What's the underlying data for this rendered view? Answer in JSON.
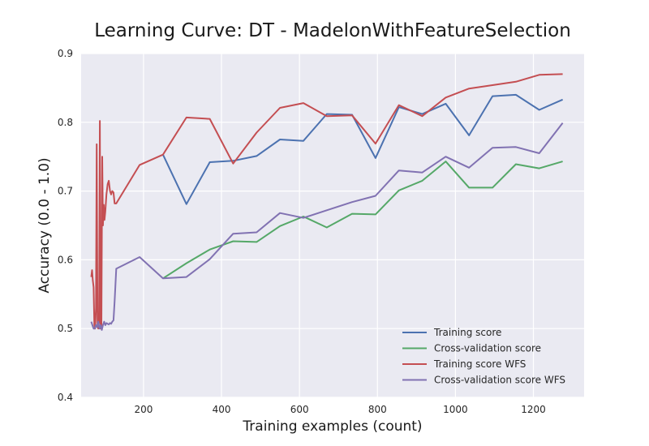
{
  "chart_data": {
    "type": "line",
    "title": "Learning Curve: DT - MadelonWithFeatureSelection",
    "xlabel": "Training examples (count)",
    "ylabel": "Accuracy (0.0 - 1.0)",
    "xlim": [
      40,
      1330
    ],
    "ylim": [
      0.4,
      0.9
    ],
    "xticks": [
      200,
      400,
      600,
      800,
      1000,
      1200
    ],
    "yticks": [
      0.4,
      0.5,
      0.6,
      0.7,
      0.8,
      0.9
    ],
    "ytick_labels": [
      "0.4",
      "0.5",
      "0.6",
      "0.7",
      "0.8",
      "0.9"
    ],
    "grid": true,
    "legend_position": "lower-right",
    "series": [
      {
        "name": "Training score",
        "color": "#4c72b0",
        "points": [
          [
            250,
            0.753
          ],
          [
            310,
            0.681
          ],
          [
            370,
            0.742
          ],
          [
            430,
            0.744
          ],
          [
            490,
            0.751
          ],
          [
            550,
            0.775
          ],
          [
            610,
            0.773
          ],
          [
            670,
            0.812
          ],
          [
            735,
            0.811
          ],
          [
            795,
            0.748
          ],
          [
            855,
            0.822
          ],
          [
            915,
            0.812
          ],
          [
            975,
            0.827
          ],
          [
            1035,
            0.781
          ],
          [
            1095,
            0.838
          ],
          [
            1155,
            0.84
          ],
          [
            1215,
            0.818
          ],
          [
            1275,
            0.833
          ]
        ]
      },
      {
        "name": "Cross-validation score",
        "color": "#55a868",
        "points": [
          [
            250,
            0.573
          ],
          [
            310,
            0.595
          ],
          [
            370,
            0.615
          ],
          [
            430,
            0.627
          ],
          [
            490,
            0.626
          ],
          [
            550,
            0.649
          ],
          [
            610,
            0.663
          ],
          [
            670,
            0.647
          ],
          [
            735,
            0.667
          ],
          [
            795,
            0.666
          ],
          [
            855,
            0.701
          ],
          [
            915,
            0.715
          ],
          [
            975,
            0.743
          ],
          [
            1035,
            0.705
          ],
          [
            1095,
            0.705
          ],
          [
            1155,
            0.739
          ],
          [
            1215,
            0.733
          ],
          [
            1275,
            0.743
          ]
        ]
      },
      {
        "name": "Training score WFS",
        "color": "#c44e52",
        "points": [
          [
            66,
            0.575
          ],
          [
            68,
            0.585
          ],
          [
            70,
            0.57
          ],
          [
            72,
            0.56
          ],
          [
            74,
            0.505
          ],
          [
            76,
            0.5
          ],
          [
            78,
            0.53
          ],
          [
            80,
            0.768
          ],
          [
            82,
            0.505
          ],
          [
            84,
            0.5
          ],
          [
            86,
            0.51
          ],
          [
            88,
            0.802
          ],
          [
            90,
            0.5
          ],
          [
            92,
            0.505
          ],
          [
            94,
            0.75
          ],
          [
            96,
            0.65
          ],
          [
            98,
            0.68
          ],
          [
            100,
            0.658
          ],
          [
            102,
            0.67
          ],
          [
            105,
            0.695
          ],
          [
            108,
            0.71
          ],
          [
            111,
            0.715
          ],
          [
            114,
            0.7
          ],
          [
            117,
            0.695
          ],
          [
            120,
            0.7
          ],
          [
            123,
            0.698
          ],
          [
            126,
            0.682
          ],
          [
            130,
            0.682
          ],
          [
            190,
            0.738
          ],
          [
            250,
            0.753
          ],
          [
            310,
            0.807
          ],
          [
            370,
            0.805
          ],
          [
            430,
            0.74
          ],
          [
            490,
            0.785
          ],
          [
            550,
            0.821
          ],
          [
            610,
            0.828
          ],
          [
            670,
            0.809
          ],
          [
            735,
            0.81
          ],
          [
            795,
            0.769
          ],
          [
            855,
            0.825
          ],
          [
            915,
            0.809
          ],
          [
            975,
            0.836
          ],
          [
            1035,
            0.849
          ],
          [
            1095,
            0.854
          ],
          [
            1155,
            0.859
          ],
          [
            1215,
            0.869
          ],
          [
            1275,
            0.87
          ]
        ]
      },
      {
        "name": "Cross-validation score WFS",
        "color": "#8172b2",
        "points": [
          [
            66,
            0.51
          ],
          [
            69,
            0.505
          ],
          [
            72,
            0.5
          ],
          [
            75,
            0.5
          ],
          [
            78,
            0.505
          ],
          [
            81,
            0.502
          ],
          [
            84,
            0.51
          ],
          [
            87,
            0.5
          ],
          [
            90,
            0.505
          ],
          [
            93,
            0.498
          ],
          [
            96,
            0.505
          ],
          [
            99,
            0.51
          ],
          [
            102,
            0.505
          ],
          [
            105,
            0.508
          ],
          [
            108,
            0.507
          ],
          [
            111,
            0.506
          ],
          [
            114,
            0.508
          ],
          [
            117,
            0.507
          ],
          [
            120,
            0.51
          ],
          [
            123,
            0.512
          ],
          [
            126,
            0.54
          ],
          [
            130,
            0.587
          ],
          [
            190,
            0.604
          ],
          [
            250,
            0.573
          ],
          [
            310,
            0.575
          ],
          [
            370,
            0.601
          ],
          [
            430,
            0.638
          ],
          [
            490,
            0.64
          ],
          [
            550,
            0.668
          ],
          [
            610,
            0.661
          ],
          [
            670,
            0.672
          ],
          [
            735,
            0.684
          ],
          [
            795,
            0.693
          ],
          [
            855,
            0.73
          ],
          [
            915,
            0.727
          ],
          [
            975,
            0.75
          ],
          [
            1035,
            0.734
          ],
          [
            1095,
            0.763
          ],
          [
            1155,
            0.764
          ],
          [
            1215,
            0.755
          ],
          [
            1275,
            0.799
          ]
        ]
      }
    ]
  }
}
